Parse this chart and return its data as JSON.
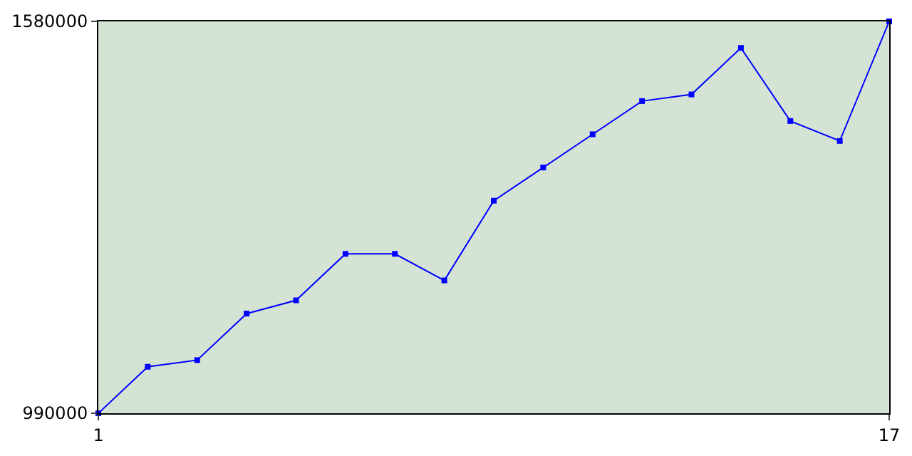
{
  "chart_data": {
    "type": "line",
    "x": [
      1,
      2,
      3,
      4,
      5,
      6,
      7,
      8,
      9,
      10,
      11,
      12,
      13,
      14,
      15,
      16,
      17
    ],
    "series": [
      {
        "color": "#0000ff",
        "values": [
          990000,
          1060000,
          1070000,
          1140000,
          1160000,
          1230000,
          1230000,
          1190000,
          1310000,
          1360000,
          1410000,
          1460000,
          1470000,
          1540000,
          1430000,
          1400000,
          1580000
        ]
      }
    ],
    "xlim": [
      1,
      17
    ],
    "xticks": [
      1,
      17
    ],
    "ylim": [
      990000,
      1580000
    ],
    "yticks": [
      990000,
      1580000
    ],
    "legend": false,
    "marker": "square",
    "line_style": "solid"
  }
}
